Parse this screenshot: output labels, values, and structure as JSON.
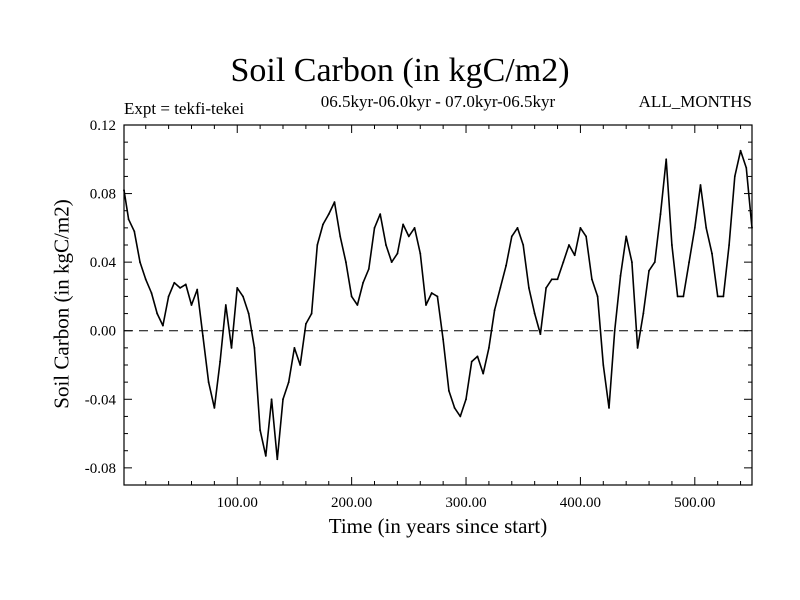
{
  "chart_data": {
    "type": "line",
    "title": "Soil Carbon (in kgC/m2)",
    "subtitle": "06.5kyr-06.0kyr - 07.0kyr-06.5kyr",
    "left_annotation": "Expt = tekfi-tekei",
    "right_annotation": "ALL_MONTHS",
    "xlabel": "Time (in years since start)",
    "ylabel": "Soil Carbon (in kgC/m2)",
    "xlim": [
      1,
      550
    ],
    "ylim": [
      -0.09,
      0.12
    ],
    "xticks": [
      100,
      200,
      300,
      400,
      500
    ],
    "xtick_labels": [
      "100.00",
      "200.00",
      "300.00",
      "400.00",
      "500.00"
    ],
    "yticks": [
      -0.08,
      -0.04,
      0.0,
      0.04,
      0.08,
      0.12
    ],
    "ytick_labels": [
      "-0.08",
      "-0.04",
      "0.00",
      "0.04",
      "0.08",
      "0.12"
    ],
    "zero_line": 0.0,
    "line_color": "#000000",
    "series": [
      {
        "name": "tekfi-tekei",
        "x": [
          1,
          5,
          10,
          15,
          20,
          25,
          30,
          35,
          40,
          45,
          50,
          55,
          60,
          65,
          70,
          75,
          80,
          85,
          90,
          95,
          100,
          105,
          110,
          115,
          120,
          125,
          130,
          135,
          140,
          145,
          150,
          155,
          160,
          165,
          170,
          175,
          180,
          185,
          190,
          195,
          200,
          205,
          210,
          215,
          220,
          225,
          230,
          235,
          240,
          245,
          250,
          255,
          260,
          265,
          270,
          275,
          280,
          285,
          290,
          295,
          300,
          305,
          310,
          315,
          320,
          325,
          330,
          335,
          340,
          345,
          350,
          355,
          360,
          365,
          370,
          375,
          380,
          385,
          390,
          395,
          400,
          405,
          410,
          415,
          420,
          425,
          430,
          435,
          440,
          445,
          450,
          455,
          460,
          465,
          470,
          475,
          480,
          485,
          490,
          495,
          500,
          505,
          510,
          515,
          520,
          525,
          530,
          535,
          540,
          545,
          550
        ],
        "values": [
          0.082,
          0.065,
          0.058,
          0.04,
          0.03,
          0.022,
          0.01,
          0.003,
          0.02,
          0.028,
          0.025,
          0.027,
          0.015,
          0.024,
          -0.003,
          -0.03,
          -0.045,
          -0.018,
          0.015,
          -0.01,
          0.025,
          0.02,
          0.01,
          -0.01,
          -0.058,
          -0.073,
          -0.04,
          -0.075,
          -0.04,
          -0.03,
          -0.01,
          -0.02,
          0.004,
          0.01,
          0.05,
          0.062,
          0.068,
          0.075,
          0.055,
          0.04,
          0.02,
          0.015,
          0.028,
          0.036,
          0.06,
          0.068,
          0.05,
          0.04,
          0.045,
          0.062,
          0.055,
          0.06,
          0.045,
          0.015,
          0.022,
          0.02,
          -0.005,
          -0.035,
          -0.045,
          -0.05,
          -0.04,
          -0.018,
          -0.015,
          -0.025,
          -0.01,
          0.012,
          0.025,
          0.038,
          0.055,
          0.06,
          0.05,
          0.025,
          0.01,
          -0.002,
          0.025,
          0.03,
          0.03,
          0.04,
          0.05,
          0.044,
          0.06,
          0.055,
          0.03,
          0.02,
          -0.02,
          -0.045,
          0.0,
          0.032,
          0.055,
          0.04,
          -0.01,
          0.01,
          0.035,
          0.04,
          0.068,
          0.1,
          0.05,
          0.02,
          0.02,
          0.04,
          0.06,
          0.085,
          0.06,
          0.045,
          0.02,
          0.02,
          0.05,
          0.09,
          0.105,
          0.095,
          0.06
        ]
      }
    ]
  }
}
